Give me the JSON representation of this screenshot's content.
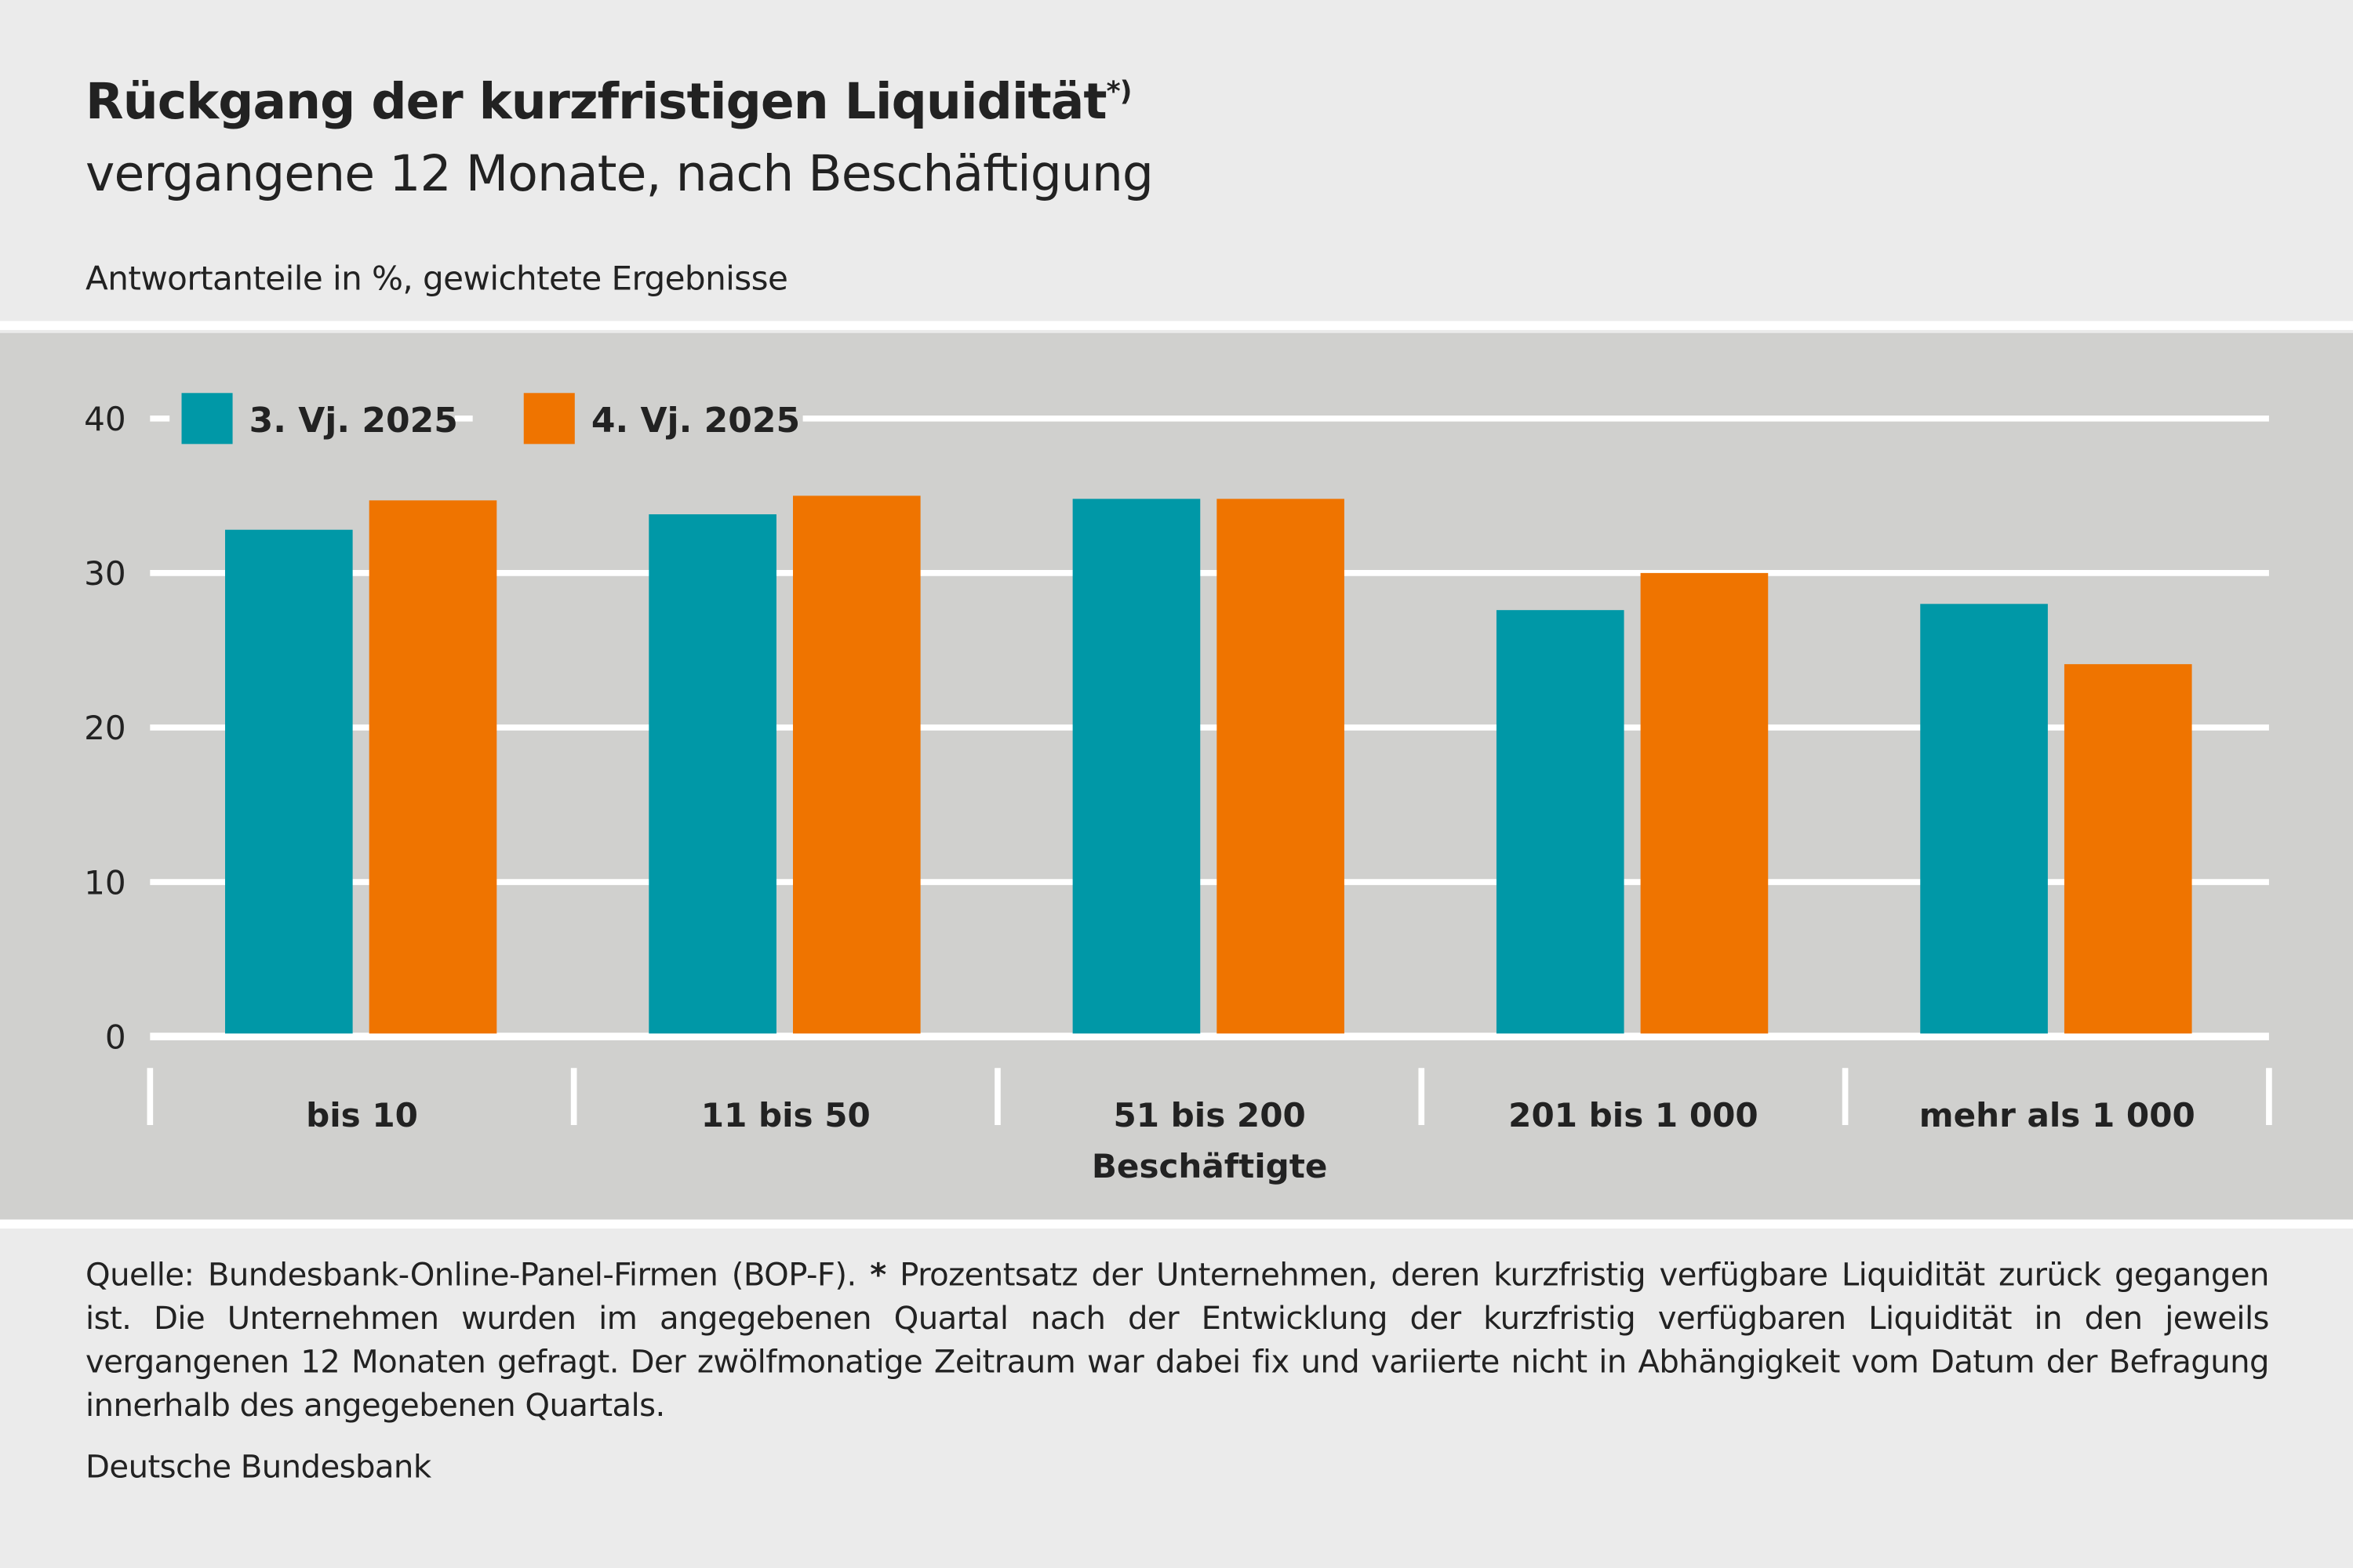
{
  "header": {
    "title": "Rückgang der kurzfristigen Liquidität",
    "title_marker": "*)",
    "subtitle": "vergangene 12 Monate, nach Beschäftigung",
    "unit_label": "Antwortanteile in %, gewichtete Ergebnisse"
  },
  "chart_data": {
    "type": "bar",
    "categories": [
      "bis 10",
      "11 bis 50",
      "51 bis 200",
      "201 bis 1 000",
      "mehr als 1 000"
    ],
    "xlabel": "Beschäftigte",
    "ylabel": "",
    "ylim": [
      0,
      40
    ],
    "yticks": [
      "0",
      "10",
      "20",
      "30",
      "40"
    ],
    "grid": true,
    "legend_position": "top-left",
    "series": [
      {
        "name": "3. Vj. 2025",
        "color": "#0098a7",
        "values": [
          32.8,
          33.8,
          34.8,
          27.6,
          28.0
        ]
      },
      {
        "name": "4. Vj. 2025",
        "color": "#ef7400",
        "values": [
          34.7,
          35.0,
          34.8,
          30.0,
          24.1
        ]
      }
    ]
  },
  "footer": {
    "source_pre": "Quelle: Bundesbank-Online-Panel-Firmen (BOP-F). ",
    "star": "*",
    "note": " Prozentsatz der Unternehmen, deren kurzfristig verfügbare Liquidität zurück gegangen ist. Die Unternehmen wurden im angegebenen Quartal nach der Entwicklung der kurzfristig verfügbaren Liquidität in den jeweils vergangenen 12 Monaten gefragt. Der zwölfmonatige Zeitraum war dabei fix und variierte nicht in Abhängigkeit vom Datum der Befragung innerhalb des angegebenen Quartals.",
    "publisher": "Deutsche Bundesbank"
  }
}
